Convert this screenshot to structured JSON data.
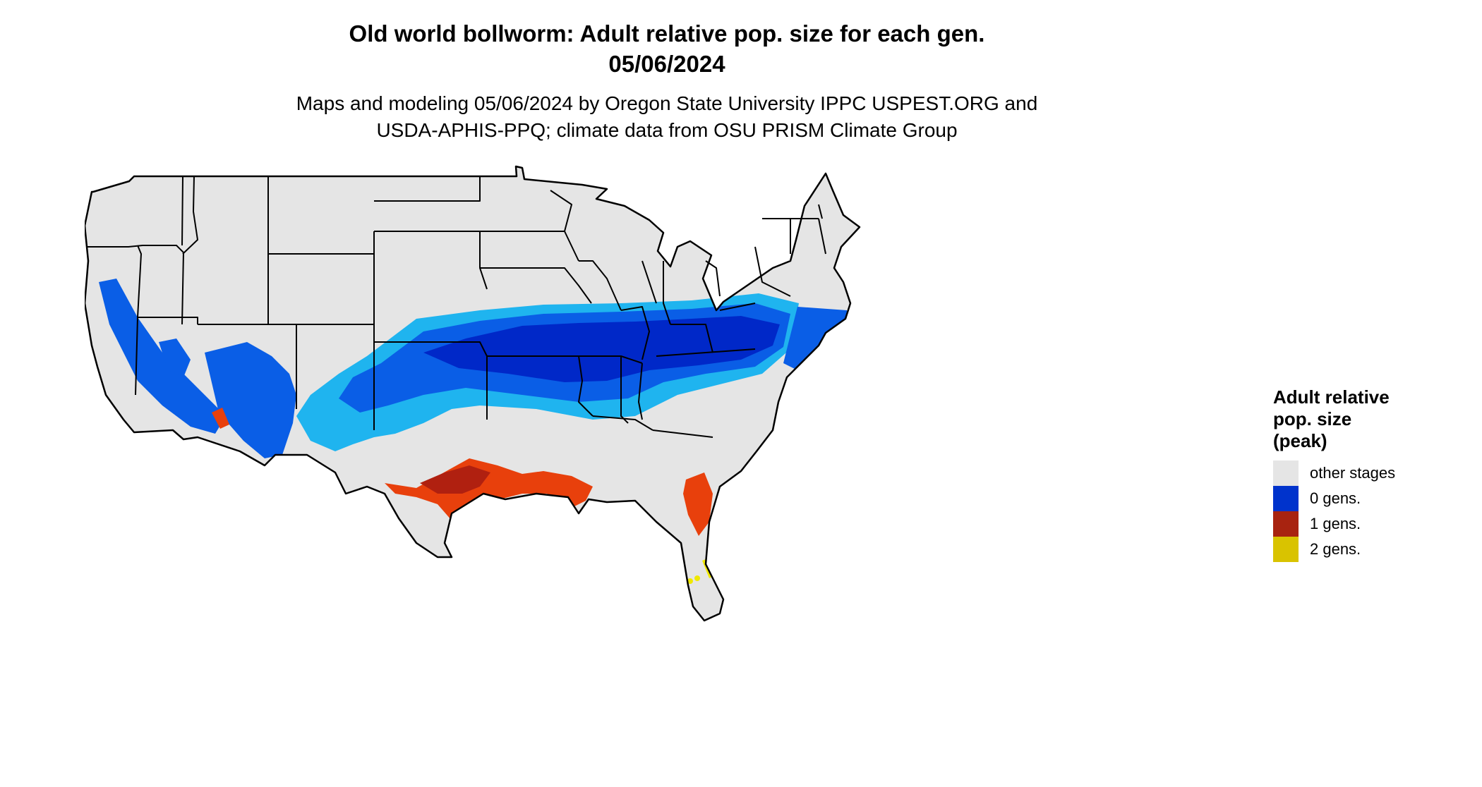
{
  "title": {
    "line1": "Old world bollworm: Adult relative pop. size for each gen.",
    "line2": "05/06/2024"
  },
  "subtitle": {
    "line1": "Maps and modeling 05/06/2024 by Oregon State University IPPC USPEST.ORG and",
    "line2": "USDA-APHIS-PPQ; climate data from OSU PRISM Climate Group"
  },
  "legend": {
    "title": "Adult relative\npop. size\n(peak)",
    "items": [
      {
        "label": "other stages",
        "color": "#e5e5e5"
      },
      {
        "label": "0 gens.",
        "color": "#0033cc"
      },
      {
        "label": "1 gens.",
        "color": "#a82310"
      },
      {
        "label": "2 gens.",
        "color": "#d9c300"
      }
    ]
  },
  "map": {
    "region": "conterminous-united-states",
    "base_color": "#e5e5e5",
    "border_color": "#000000",
    "zone_colors": {
      "light_blue": "#1fb4ef",
      "mid_blue": "#0a5ee6",
      "dark_blue": "#0028c8",
      "orange_red": "#e8400c",
      "dark_red": "#b02010",
      "yellow": "#f0e800"
    }
  }
}
